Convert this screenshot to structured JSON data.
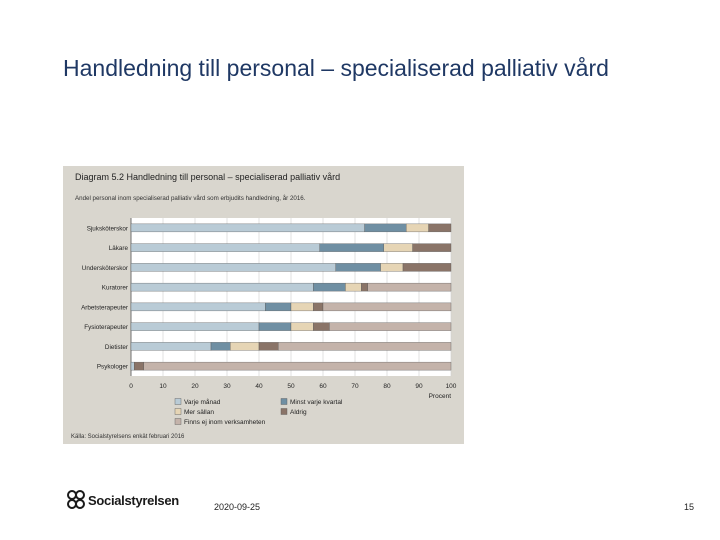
{
  "slide": {
    "title": "Handledning till personal – specialiserad palliativ vård",
    "date": "2020-09-25",
    "page_number": "15",
    "logo_text": "Socialstyrelsen"
  },
  "colors": {
    "panel_bg": "#d9d6ce",
    "title_text": "#1f3864",
    "series": [
      "#b9cbd6",
      "#6f8fa3",
      "#e6d5b5",
      "#8a7468",
      "#c4b3aa"
    ]
  },
  "chart_data": {
    "type": "bar",
    "orientation": "horizontal",
    "stacked": true,
    "title": "Diagram 5.2 Handledning till personal – specialiserad palliativ vård",
    "subtitle": "Andel personal inom specialiserad palliativ vård som erbjudits handledning, år 2016.",
    "categories": [
      "Sjuksköterskor",
      "Läkare",
      "Undersköterskor",
      "Kuratorer",
      "Arbetsterapeuter",
      "Fysioterapeuter",
      "Dietister",
      "Psykologer"
    ],
    "series": [
      {
        "name": "Varje månad",
        "values": [
          73,
          59,
          64,
          57,
          42,
          40,
          25,
          1
        ]
      },
      {
        "name": "Minst varje kvartal",
        "values": [
          13,
          20,
          14,
          10,
          8,
          10,
          6,
          0
        ]
      },
      {
        "name": "Mer sällan",
        "values": [
          7,
          9,
          7,
          5,
          7,
          7,
          9,
          0
        ]
      },
      {
        "name": "Aldrig",
        "values": [
          7,
          12,
          15,
          2,
          3,
          5,
          6,
          3
        ]
      },
      {
        "name": "Finns ej inom verksamheten",
        "values": [
          0,
          0,
          0,
          26,
          40,
          38,
          54,
          96
        ]
      }
    ],
    "xlim": [
      0,
      100
    ],
    "xticks": [
      "0",
      "10",
      "20",
      "30",
      "40",
      "50",
      "60",
      "70",
      "80",
      "90",
      "100"
    ],
    "xlabel": "Procent",
    "grid": true,
    "legend_position": "bottom",
    "source": "Källa: Socialstyrelsens enkät februari 2016"
  }
}
